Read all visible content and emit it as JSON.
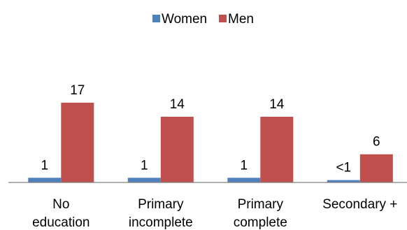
{
  "chart_data": {
    "type": "bar",
    "categories": [
      [
        "No",
        "education"
      ],
      [
        "Primary",
        "incomplete"
      ],
      [
        "Primary",
        "complete"
      ],
      [
        "Secondary +"
      ]
    ],
    "series": [
      {
        "name": "Women",
        "color": "#4F81BD",
        "values": [
          1,
          1,
          1,
          0.5
        ],
        "labels": [
          "1",
          "1",
          "1",
          "<1"
        ]
      },
      {
        "name": "Men",
        "color": "#C0504D",
        "values": [
          17,
          14,
          14,
          6
        ],
        "labels": [
          "17",
          "14",
          "14",
          "6"
        ]
      }
    ],
    "ylim": [
      0,
      35
    ],
    "grid": false,
    "legend": "top-center",
    "title": "",
    "xlabel": "",
    "ylabel": ""
  }
}
